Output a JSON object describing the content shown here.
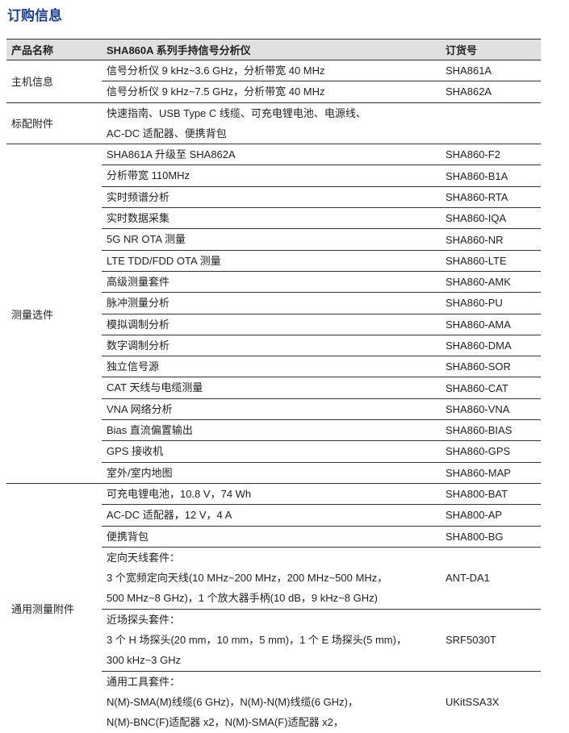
{
  "title": "订购信息",
  "header": {
    "col1": "产品名称",
    "col2": "SHA860A 系列手持信号分析仪",
    "col3": "订货号"
  },
  "groups": [
    {
      "name": "主机信息",
      "rows": [
        {
          "desc": [
            "信号分析仪 9 kHz~3.6 GHz，分析带宽 40 MHz"
          ],
          "code": "SHA861A"
        },
        {
          "desc": [
            "信号分析仪 9 kHz~7.5 GHz，分析带宽 40 MHz"
          ],
          "code": "SHA862A"
        }
      ]
    },
    {
      "name": "标配附件",
      "rows": [
        {
          "desc": [
            "快速指南、USB Type C  线缆、可充电锂电池、电源线、",
            "AC-DC 适配器、便携背包"
          ],
          "code": ""
        }
      ]
    },
    {
      "name": "测量选件",
      "rows": [
        {
          "desc": [
            "SHA861A 升级至 SHA862A"
          ],
          "code": "SHA860-F2"
        },
        {
          "desc": [
            "分析带宽 110MHz"
          ],
          "code": "SHA860-B1A"
        },
        {
          "desc": [
            "实时频谱分析"
          ],
          "code": "SHA860-RTA"
        },
        {
          "desc": [
            "实时数据采集"
          ],
          "code": "SHA860-IQA"
        },
        {
          "desc": [
            "5G NR OTA 测量"
          ],
          "code": "SHA860-NR"
        },
        {
          "desc": [
            "LTE TDD/FDD OTA 测量"
          ],
          "code": "SHA860-LTE"
        },
        {
          "desc": [
            "高级测量套件"
          ],
          "code": "SHA860-AMK"
        },
        {
          "desc": [
            "脉冲测量分析"
          ],
          "code": "SHA860-PU"
        },
        {
          "desc": [
            "模拟调制分析"
          ],
          "code": "SHA860-AMA"
        },
        {
          "desc": [
            "数字调制分析"
          ],
          "code": "SHA860-DMA"
        },
        {
          "desc": [
            "独立信号源"
          ],
          "code": "SHA860-SOR"
        },
        {
          "desc": [
            "CAT 天线与电缆测量"
          ],
          "code": "SHA860-CAT"
        },
        {
          "desc": [
            "VNA 网络分析"
          ],
          "code": "SHA860-VNA"
        },
        {
          "desc": [
            "Bias 直流偏置输出"
          ],
          "code": "SHA860-BIAS"
        },
        {
          "desc": [
            "GPS 接收机"
          ],
          "code": "SHA860-GPS"
        },
        {
          "desc": [
            "室外/室内地图"
          ],
          "code": "SHA860-MAP"
        }
      ]
    },
    {
      "name": "通用测量附件",
      "rows": [
        {
          "desc": [
            "可充电锂电池，10.8 V，74 Wh"
          ],
          "code": "SHA800-BAT"
        },
        {
          "desc": [
            "AC-DC 适配器，12 V，4 A"
          ],
          "code": "SHA800-AP"
        },
        {
          "desc": [
            "便携背包"
          ],
          "code": "SHA800-BG"
        },
        {
          "desc": [
            "定向天线套件：",
            "3 个宽频定向天线(10 MHz~200 MHz，200 MHz~500 MHz，",
            "500 MHz~8 GHz)，1 个放大器手柄(10 dB，9 kHz~8 GHz)"
          ],
          "code": "ANT-DA1"
        },
        {
          "desc": [
            "近场探头套件：",
            "3 个 H 场探头(20 mm，10 mm，5 mm)，1 个 E 场探头(5 mm)，",
            "300 kHz~3 GHz"
          ],
          "code": "SRF5030T"
        },
        {
          "desc": [
            "通用工具套件：",
            "N(M)-SMA(M)线缆(6 GHz)，N(M)-N(M)线缆(6 GHz)，",
            "N(M)-BNC(F)适配器 x2，N(M)-SMA(F)适配器 x2，"
          ],
          "code": "UKitSSA3X"
        }
      ]
    }
  ]
}
